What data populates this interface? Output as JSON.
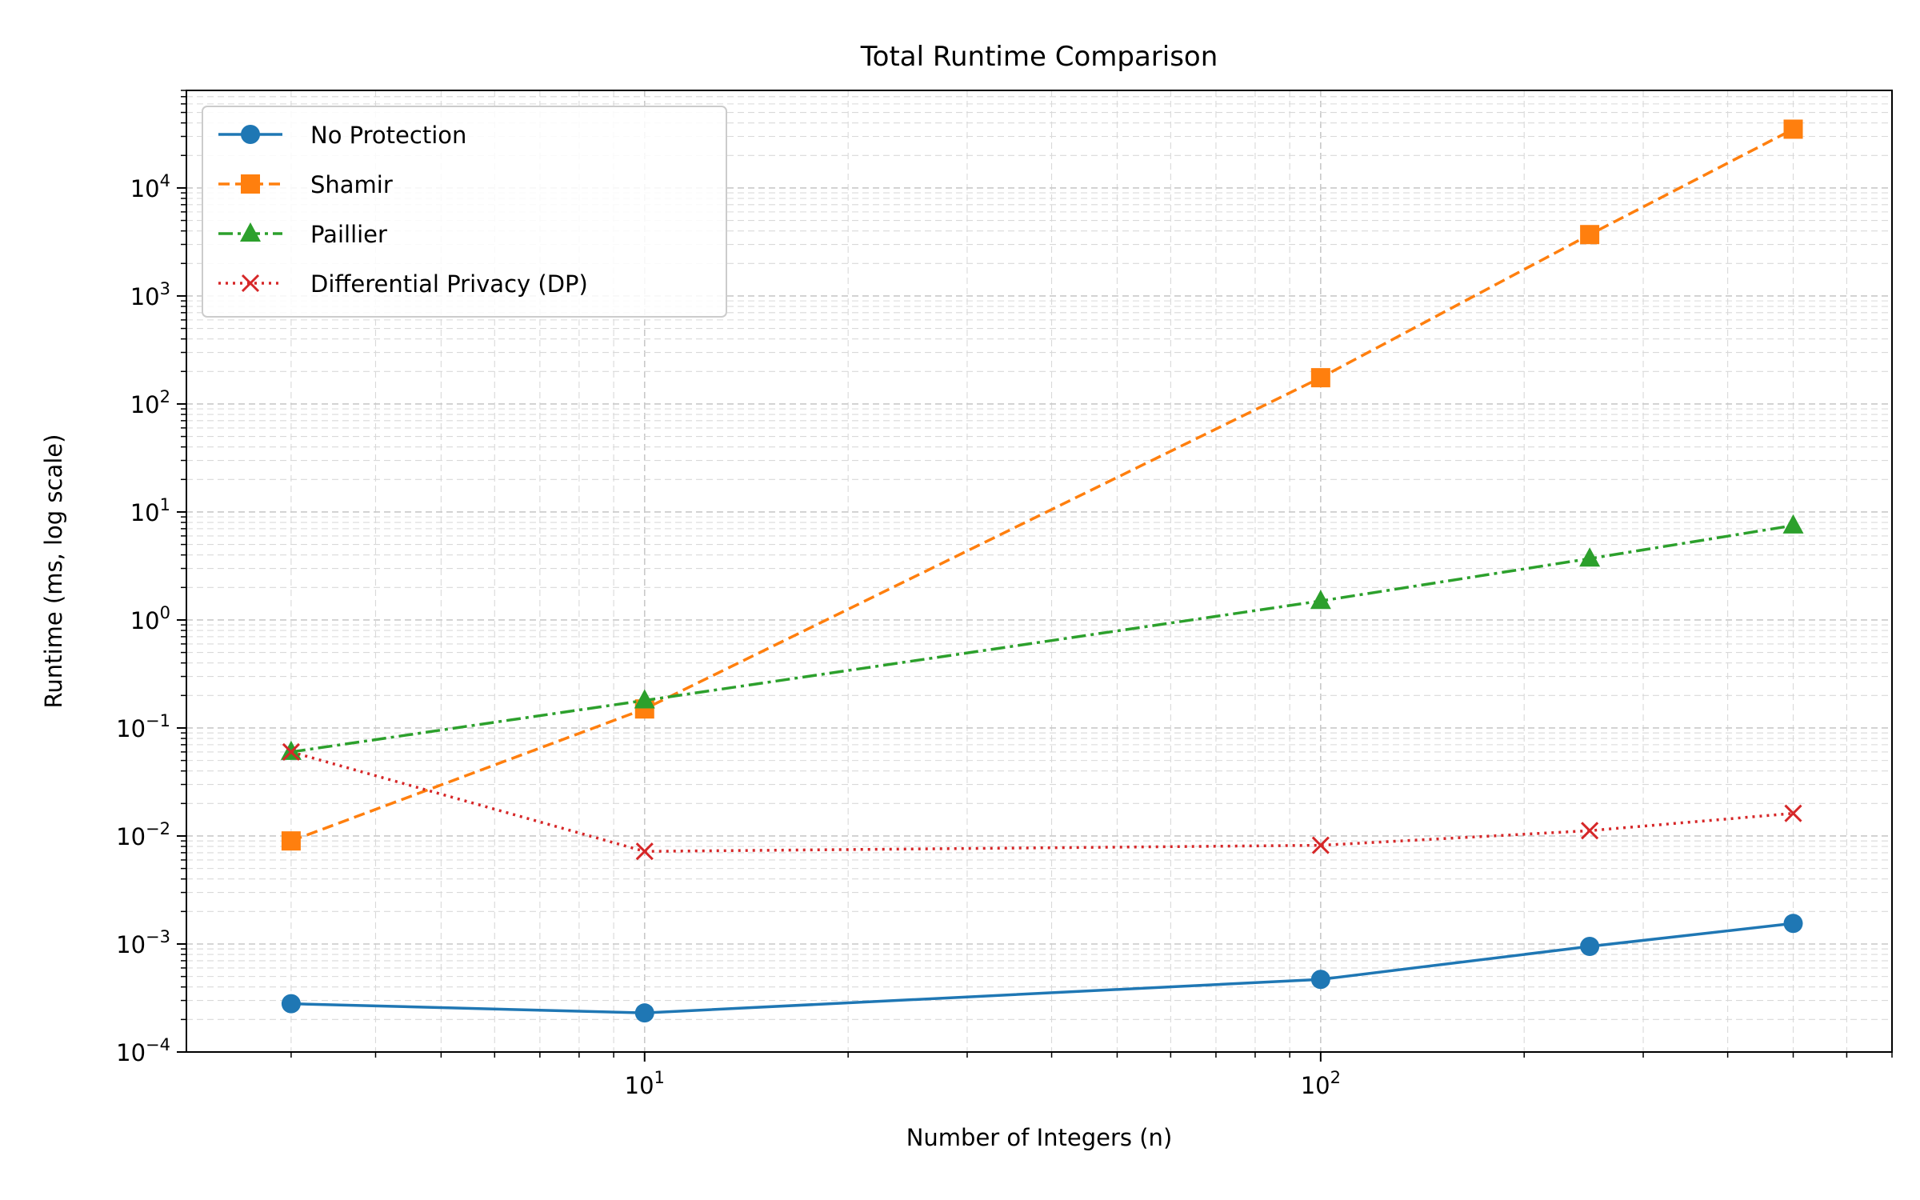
{
  "chart_data": {
    "type": "line",
    "title": "Total Runtime Comparison",
    "xlabel": "Number of Integers (n)",
    "ylabel": "Runtime (ms, log scale)",
    "xscale": "log",
    "yscale": "log",
    "xlim": [
      2.1,
      700
    ],
    "ylim": [
      0.0001,
      80000
    ],
    "x_major_ticks": [
      10,
      100
    ],
    "x_tick_labels": [
      {
        "base": "10",
        "exp": "1"
      },
      {
        "base": "10",
        "exp": "2"
      }
    ],
    "y_major_ticks": [
      0.0001,
      0.001,
      0.01,
      0.1,
      1,
      10,
      100,
      1000,
      10000
    ],
    "y_tick_labels": [
      {
        "base": "10",
        "exp": "−4"
      },
      {
        "base": "10",
        "exp": "−3"
      },
      {
        "base": "10",
        "exp": "−2"
      },
      {
        "base": "10",
        "exp": "−1"
      },
      {
        "base": "10",
        "exp": "0"
      },
      {
        "base": "10",
        "exp": "1"
      },
      {
        "base": "10",
        "exp": "2"
      },
      {
        "base": "10",
        "exp": "3"
      },
      {
        "base": "10",
        "exp": "4"
      }
    ],
    "grid": true,
    "legend_position": "top-left",
    "x": [
      3,
      10,
      100,
      250,
      500
    ],
    "series": [
      {
        "name": "No Protection",
        "color": "#1f77b4",
        "marker": "circle",
        "linestyle": "solid",
        "values": [
          0.00028,
          0.00023,
          0.00047,
          0.00095,
          0.00155
        ]
      },
      {
        "name": "Shamir",
        "color": "#ff7f0e",
        "marker": "square",
        "linestyle": "dashed",
        "values": [
          0.009,
          0.15,
          175,
          3700,
          35000
        ]
      },
      {
        "name": "Paillier",
        "color": "#2ca02c",
        "marker": "triangle",
        "linestyle": "dashdot",
        "values": [
          0.06,
          0.18,
          1.5,
          3.7,
          7.5
        ]
      },
      {
        "name": "Differential Privacy (DP)",
        "color": "#d62728",
        "marker": "x",
        "linestyle": "dotted",
        "values": [
          0.06,
          0.0072,
          0.0082,
          0.0112,
          0.0162
        ]
      }
    ]
  }
}
